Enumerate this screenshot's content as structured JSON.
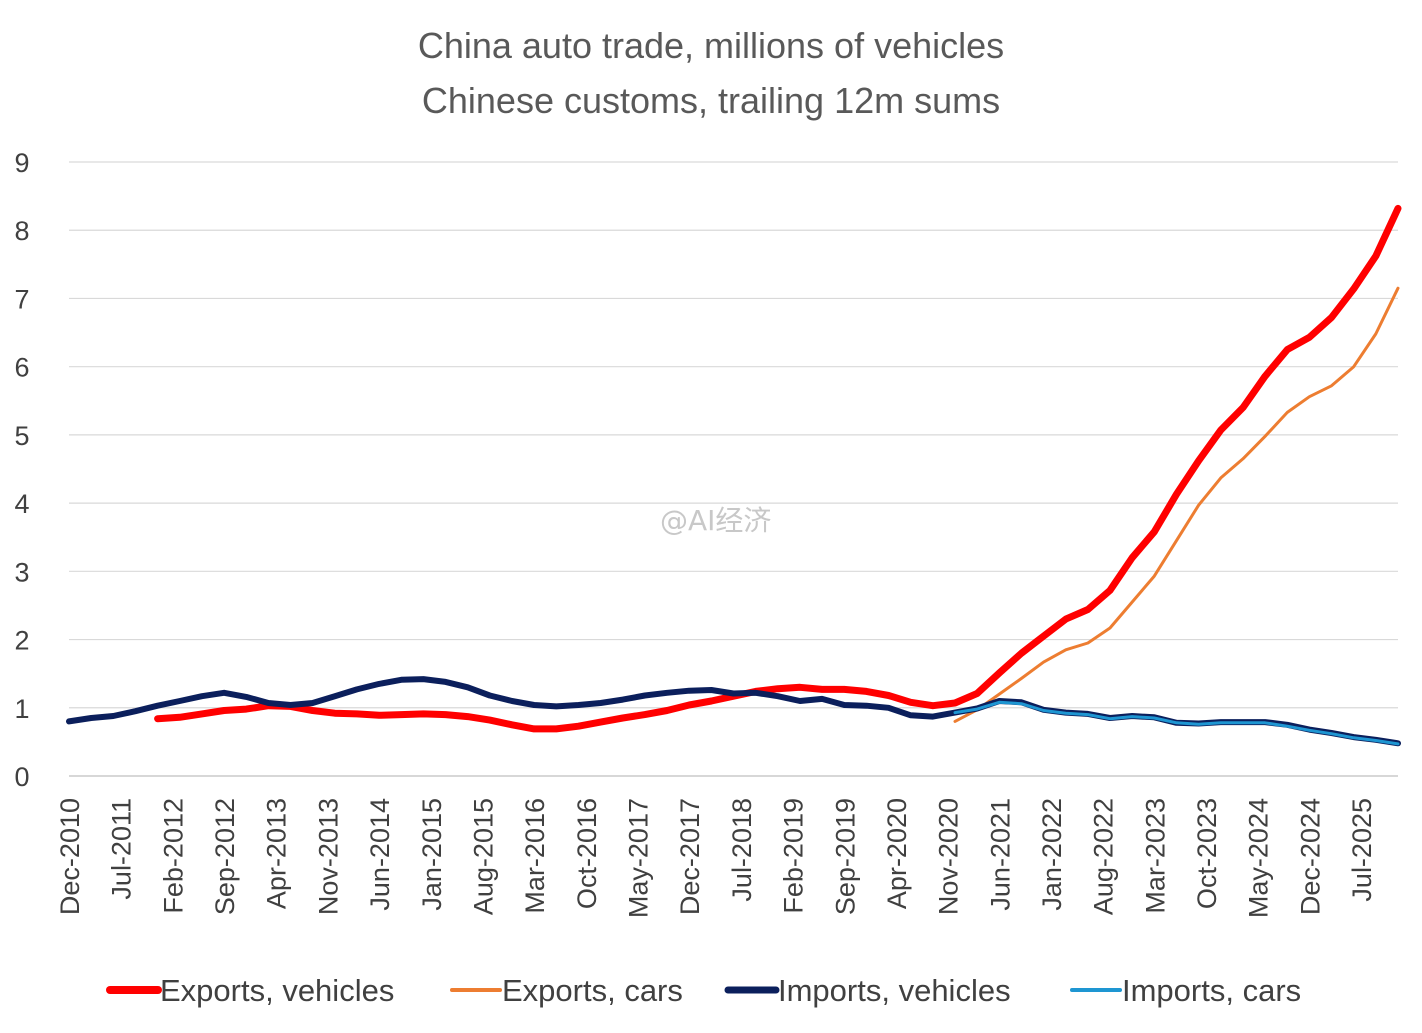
{
  "chart_data": {
    "type": "line",
    "title": "China auto trade, millions of vehicles",
    "subtitle": "Chinese customs, trailing 12m sums",
    "watermark": "@AI经济",
    "ylim": [
      0,
      9
    ],
    "yticks": [
      0,
      1,
      2,
      3,
      4,
      5,
      6,
      7,
      8,
      9
    ],
    "grid": "horizontal",
    "legend_position": "bottom",
    "xlim": [
      "2010-12",
      "2025-12"
    ],
    "x_tick_labels": [
      {
        "date": "2010-12",
        "label": "Dec-2010"
      },
      {
        "date": "2011-07",
        "label": "Jul-2011"
      },
      {
        "date": "2012-02",
        "label": "Feb-2012"
      },
      {
        "date": "2012-09",
        "label": "Sep-2012"
      },
      {
        "date": "2013-04",
        "label": "Apr-2013"
      },
      {
        "date": "2013-11",
        "label": "Nov-2013"
      },
      {
        "date": "2014-06",
        "label": "Jun-2014"
      },
      {
        "date": "2015-01",
        "label": "Jan-2015"
      },
      {
        "date": "2015-08",
        "label": "Aug-2015"
      },
      {
        "date": "2016-03",
        "label": "Mar-2016"
      },
      {
        "date": "2016-10",
        "label": "Oct-2016"
      },
      {
        "date": "2017-05",
        "label": "May-2017"
      },
      {
        "date": "2017-12",
        "label": "Dec-2017"
      },
      {
        "date": "2018-07",
        "label": "Jul-2018"
      },
      {
        "date": "2019-02",
        "label": "Feb-2019"
      },
      {
        "date": "2019-09",
        "label": "Sep-2019"
      },
      {
        "date": "2020-04",
        "label": "Apr-2020"
      },
      {
        "date": "2020-11",
        "label": "Nov-2020"
      },
      {
        "date": "2021-06",
        "label": "Jun-2021"
      },
      {
        "date": "2022-01",
        "label": "Jan-2022"
      },
      {
        "date": "2022-08",
        "label": "Aug-2022"
      },
      {
        "date": "2023-03",
        "label": "Mar-2023"
      },
      {
        "date": "2023-10",
        "label": "Oct-2023"
      },
      {
        "date": "2024-05",
        "label": "May-2024"
      },
      {
        "date": "2024-12",
        "label": "Dec-2024"
      },
      {
        "date": "2025-07",
        "label": "Jul-2025"
      }
    ],
    "series": [
      {
        "name": "Exports, vehicles",
        "color": "#ff0000",
        "points": [
          [
            "2011-12",
            0.84
          ],
          [
            "2012-03",
            0.86
          ],
          [
            "2012-06",
            0.91
          ],
          [
            "2012-09",
            0.96
          ],
          [
            "2012-12",
            0.98
          ],
          [
            "2013-03",
            1.03
          ],
          [
            "2013-06",
            1.02
          ],
          [
            "2013-09",
            0.96
          ],
          [
            "2013-12",
            0.92
          ],
          [
            "2014-03",
            0.91
          ],
          [
            "2014-06",
            0.89
          ],
          [
            "2014-09",
            0.9
          ],
          [
            "2014-12",
            0.91
          ],
          [
            "2015-03",
            0.9
          ],
          [
            "2015-06",
            0.87
          ],
          [
            "2015-09",
            0.82
          ],
          [
            "2015-12",
            0.75
          ],
          [
            "2016-03",
            0.69
          ],
          [
            "2016-06",
            0.69
          ],
          [
            "2016-09",
            0.73
          ],
          [
            "2016-12",
            0.79
          ],
          [
            "2017-03",
            0.85
          ],
          [
            "2017-06",
            0.9
          ],
          [
            "2017-09",
            0.96
          ],
          [
            "2017-12",
            1.04
          ],
          [
            "2018-03",
            1.1
          ],
          [
            "2018-06",
            1.17
          ],
          [
            "2018-09",
            1.24
          ],
          [
            "2018-12",
            1.28
          ],
          [
            "2019-03",
            1.3
          ],
          [
            "2019-06",
            1.27
          ],
          [
            "2019-09",
            1.27
          ],
          [
            "2019-12",
            1.24
          ],
          [
            "2020-03",
            1.18
          ],
          [
            "2020-06",
            1.08
          ],
          [
            "2020-09",
            1.03
          ],
          [
            "2020-12",
            1.07
          ],
          [
            "2021-03",
            1.21
          ],
          [
            "2021-06",
            1.51
          ],
          [
            "2021-09",
            1.8
          ],
          [
            "2021-12",
            2.05
          ],
          [
            "2022-03",
            2.3
          ],
          [
            "2022-06",
            2.44
          ],
          [
            "2022-09",
            2.72
          ],
          [
            "2022-12",
            3.2
          ],
          [
            "2023-03",
            3.58
          ],
          [
            "2023-06",
            4.13
          ],
          [
            "2023-09",
            4.62
          ],
          [
            "2023-12",
            5.07
          ],
          [
            "2024-03",
            5.4
          ],
          [
            "2024-06",
            5.86
          ],
          [
            "2024-09",
            6.25
          ],
          [
            "2024-12",
            6.43
          ],
          [
            "2025-03",
            6.72
          ],
          [
            "2025-06",
            7.14
          ],
          [
            "2025-09",
            7.62
          ],
          [
            "2025-12",
            8.32
          ]
        ]
      },
      {
        "name": "Exports, cars",
        "color": "#ed7d31",
        "points": [
          [
            "2020-12",
            0.8
          ],
          [
            "2021-03",
            0.97
          ],
          [
            "2021-06",
            1.2
          ],
          [
            "2021-09",
            1.43
          ],
          [
            "2021-12",
            1.67
          ],
          [
            "2022-03",
            1.85
          ],
          [
            "2022-06",
            1.95
          ],
          [
            "2022-09",
            2.17
          ],
          [
            "2022-12",
            2.55
          ],
          [
            "2023-03",
            2.93
          ],
          [
            "2023-06",
            3.45
          ],
          [
            "2023-09",
            3.97
          ],
          [
            "2023-12",
            4.37
          ],
          [
            "2024-03",
            4.65
          ],
          [
            "2024-06",
            4.98
          ],
          [
            "2024-09",
            5.33
          ],
          [
            "2024-12",
            5.56
          ],
          [
            "2025-03",
            5.72
          ],
          [
            "2025-06",
            6.0
          ],
          [
            "2025-09",
            6.48
          ],
          [
            "2025-12",
            7.15
          ]
        ]
      },
      {
        "name": "Imports, vehicles",
        "color": "#0b1f5c",
        "points": [
          [
            "2010-12",
            0.8
          ],
          [
            "2011-03",
            0.85
          ],
          [
            "2011-06",
            0.88
          ],
          [
            "2011-09",
            0.95
          ],
          [
            "2011-12",
            1.03
          ],
          [
            "2012-03",
            1.1
          ],
          [
            "2012-06",
            1.17
          ],
          [
            "2012-09",
            1.22
          ],
          [
            "2012-12",
            1.16
          ],
          [
            "2013-03",
            1.07
          ],
          [
            "2013-06",
            1.04
          ],
          [
            "2013-09",
            1.07
          ],
          [
            "2013-12",
            1.17
          ],
          [
            "2014-03",
            1.27
          ],
          [
            "2014-06",
            1.35
          ],
          [
            "2014-09",
            1.41
          ],
          [
            "2014-12",
            1.42
          ],
          [
            "2015-03",
            1.38
          ],
          [
            "2015-06",
            1.3
          ],
          [
            "2015-09",
            1.18
          ],
          [
            "2015-12",
            1.1
          ],
          [
            "2016-03",
            1.04
          ],
          [
            "2016-06",
            1.02
          ],
          [
            "2016-09",
            1.04
          ],
          [
            "2016-12",
            1.07
          ],
          [
            "2017-03",
            1.12
          ],
          [
            "2017-06",
            1.18
          ],
          [
            "2017-09",
            1.22
          ],
          [
            "2017-12",
            1.25
          ],
          [
            "2018-03",
            1.26
          ],
          [
            "2018-06",
            1.21
          ],
          [
            "2018-09",
            1.22
          ],
          [
            "2018-12",
            1.17
          ],
          [
            "2019-03",
            1.1
          ],
          [
            "2019-06",
            1.13
          ],
          [
            "2019-09",
            1.04
          ],
          [
            "2019-12",
            1.03
          ],
          [
            "2020-03",
            1.0
          ],
          [
            "2020-06",
            0.89
          ],
          [
            "2020-09",
            0.87
          ],
          [
            "2020-12",
            0.93
          ],
          [
            "2021-03",
            0.99
          ],
          [
            "2021-06",
            1.1
          ],
          [
            "2021-09",
            1.08
          ],
          [
            "2021-12",
            0.97
          ],
          [
            "2022-03",
            0.93
          ],
          [
            "2022-06",
            0.91
          ],
          [
            "2022-09",
            0.85
          ],
          [
            "2022-12",
            0.88
          ],
          [
            "2023-03",
            0.86
          ],
          [
            "2023-06",
            0.78
          ],
          [
            "2023-09",
            0.77
          ],
          [
            "2023-12",
            0.79
          ],
          [
            "2024-03",
            0.79
          ],
          [
            "2024-06",
            0.79
          ],
          [
            "2024-09",
            0.75
          ],
          [
            "2024-12",
            0.68
          ],
          [
            "2025-03",
            0.63
          ],
          [
            "2025-06",
            0.57
          ],
          [
            "2025-09",
            0.53
          ],
          [
            "2025-12",
            0.48
          ]
        ]
      },
      {
        "name": "Imports, cars",
        "color": "#1e96d2",
        "points": [
          [
            "2020-12",
            0.93
          ],
          [
            "2021-03",
            0.98
          ],
          [
            "2021-06",
            1.08
          ],
          [
            "2021-09",
            1.06
          ],
          [
            "2021-12",
            0.96
          ],
          [
            "2022-03",
            0.92
          ],
          [
            "2022-06",
            0.9
          ],
          [
            "2022-09",
            0.84
          ],
          [
            "2022-12",
            0.87
          ],
          [
            "2023-03",
            0.85
          ],
          [
            "2023-06",
            0.78
          ],
          [
            "2023-09",
            0.76
          ],
          [
            "2023-12",
            0.78
          ],
          [
            "2024-03",
            0.78
          ],
          [
            "2024-06",
            0.78
          ],
          [
            "2024-09",
            0.73
          ],
          [
            "2024-12",
            0.67
          ],
          [
            "2025-03",
            0.62
          ],
          [
            "2025-06",
            0.56
          ],
          [
            "2025-09",
            0.52
          ],
          [
            "2025-12",
            0.47
          ]
        ]
      }
    ]
  }
}
